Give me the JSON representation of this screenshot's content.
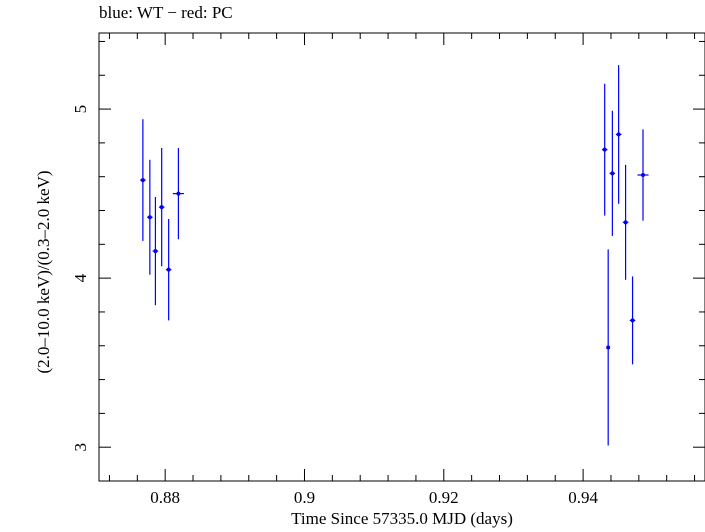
{
  "chart_data": {
    "type": "scatter",
    "title": "blue: WT − red: PC",
    "xlabel": "Time Since 57335.0 MJD (days)",
    "ylabel": "(2.0–10.0 keV)/(0.3–2.0 keV)",
    "xlim": [
      0.8705,
      0.9575
    ],
    "ylim": [
      2.8,
      5.45
    ],
    "x_ticks": [
      "0.88",
      "0.9",
      "0.92",
      "0.94"
    ],
    "y_ticks": [
      "3",
      "4",
      "5"
    ],
    "grid": false,
    "series": [
      {
        "color": "#0000ff",
        "points": [
          {
            "x": 0.8768,
            "y": 4.58,
            "yerr": 0.36,
            "xerr": 0.0004
          },
          {
            "x": 0.8778,
            "y": 4.36,
            "yerr": 0.34,
            "xerr": 0.0004
          },
          {
            "x": 0.8786,
            "y": 4.16,
            "yerr": 0.32,
            "xerr": 0.0004
          },
          {
            "x": 0.8795,
            "y": 4.42,
            "yerr": 0.35,
            "xerr": 0.0004
          },
          {
            "x": 0.8805,
            "y": 4.05,
            "yerr": 0.3,
            "xerr": 0.0004
          },
          {
            "x": 0.8819,
            "y": 4.5,
            "yerr": 0.27,
            "xerr": 0.0008
          },
          {
            "x": 0.9431,
            "y": 4.76,
            "yerr": 0.39,
            "xerr": 0.0004
          },
          {
            "x": 0.9436,
            "y": 3.59,
            "yerr": 0.58,
            "xerr": 0.0002
          },
          {
            "x": 0.9442,
            "y": 4.62,
            "yerr": 0.37,
            "xerr": 0.0004
          },
          {
            "x": 0.9451,
            "y": 4.85,
            "yerr": 0.41,
            "xerr": 0.0004
          },
          {
            "x": 0.9461,
            "y": 4.33,
            "yerr": 0.34,
            "xerr": 0.0004
          },
          {
            "x": 0.9471,
            "y": 3.75,
            "yerr": 0.26,
            "xerr": 0.0004
          },
          {
            "x": 0.9486,
            "y": 4.61,
            "yerr": 0.27,
            "xerr": 0.0008
          }
        ]
      }
    ]
  }
}
